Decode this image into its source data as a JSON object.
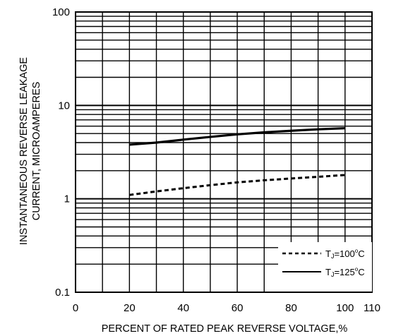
{
  "chart_data": {
    "type": "line",
    "title": "",
    "xlabel": "PERCENT OF RATED PEAK REVERSE VOLTAGE,%",
    "ylabel_line1": "INSTANTANEOUS REVERSE LEAKAGE",
    "ylabel_line2": "CURRENT, MICROAMPERES",
    "xlim": [
      0,
      110
    ],
    "ylim": [
      0.1,
      100
    ],
    "yscale": "log",
    "grid": true,
    "x_ticks": [
      "0",
      "20",
      "40",
      "60",
      "80",
      "100",
      "110"
    ],
    "y_ticks": [
      "100",
      "10",
      "1",
      "0.1"
    ],
    "legend_position": "bottom-right",
    "series": [
      {
        "name": "TJ=100°C",
        "legend_main": "T",
        "legend_sub": "J",
        "legend_rest": "=100",
        "legend_sup": "o",
        "legend_unit": "C",
        "style": "dashed",
        "x": [
          20,
          30,
          40,
          50,
          60,
          70,
          80,
          90,
          100
        ],
        "y": [
          1.1,
          1.2,
          1.3,
          1.4,
          1.5,
          1.58,
          1.65,
          1.72,
          1.8
        ]
      },
      {
        "name": "TJ=125°C",
        "legend_main": "T",
        "legend_sub": "J",
        "legend_rest": "=125",
        "legend_sup": "o",
        "legend_unit": "C",
        "style": "solid",
        "x": [
          20,
          30,
          40,
          50,
          60,
          70,
          80,
          90,
          100
        ],
        "y": [
          3.8,
          4.0,
          4.3,
          4.6,
          4.9,
          5.15,
          5.35,
          5.55,
          5.7
        ]
      }
    ]
  }
}
